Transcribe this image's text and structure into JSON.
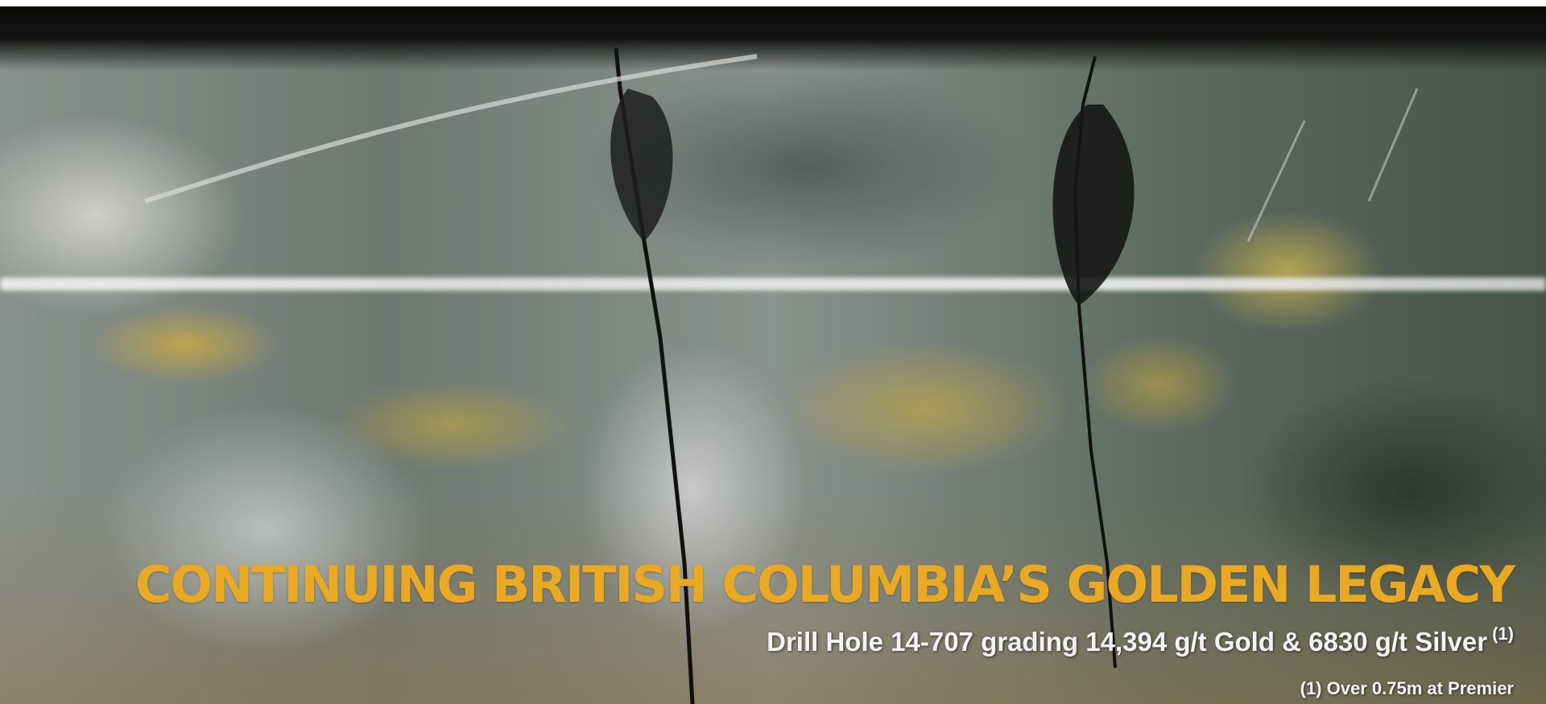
{
  "banner": {
    "title": "CONTINUING BRITISH COLUMBIA’S GOLDEN LEGACY",
    "subtitle": "Drill Hole 14-707 grading 14,394 g/t Gold & 6830 g/t Silver",
    "subtitle_note": "(1)",
    "footnote": "(1) Over 0.75m at Premier"
  }
}
